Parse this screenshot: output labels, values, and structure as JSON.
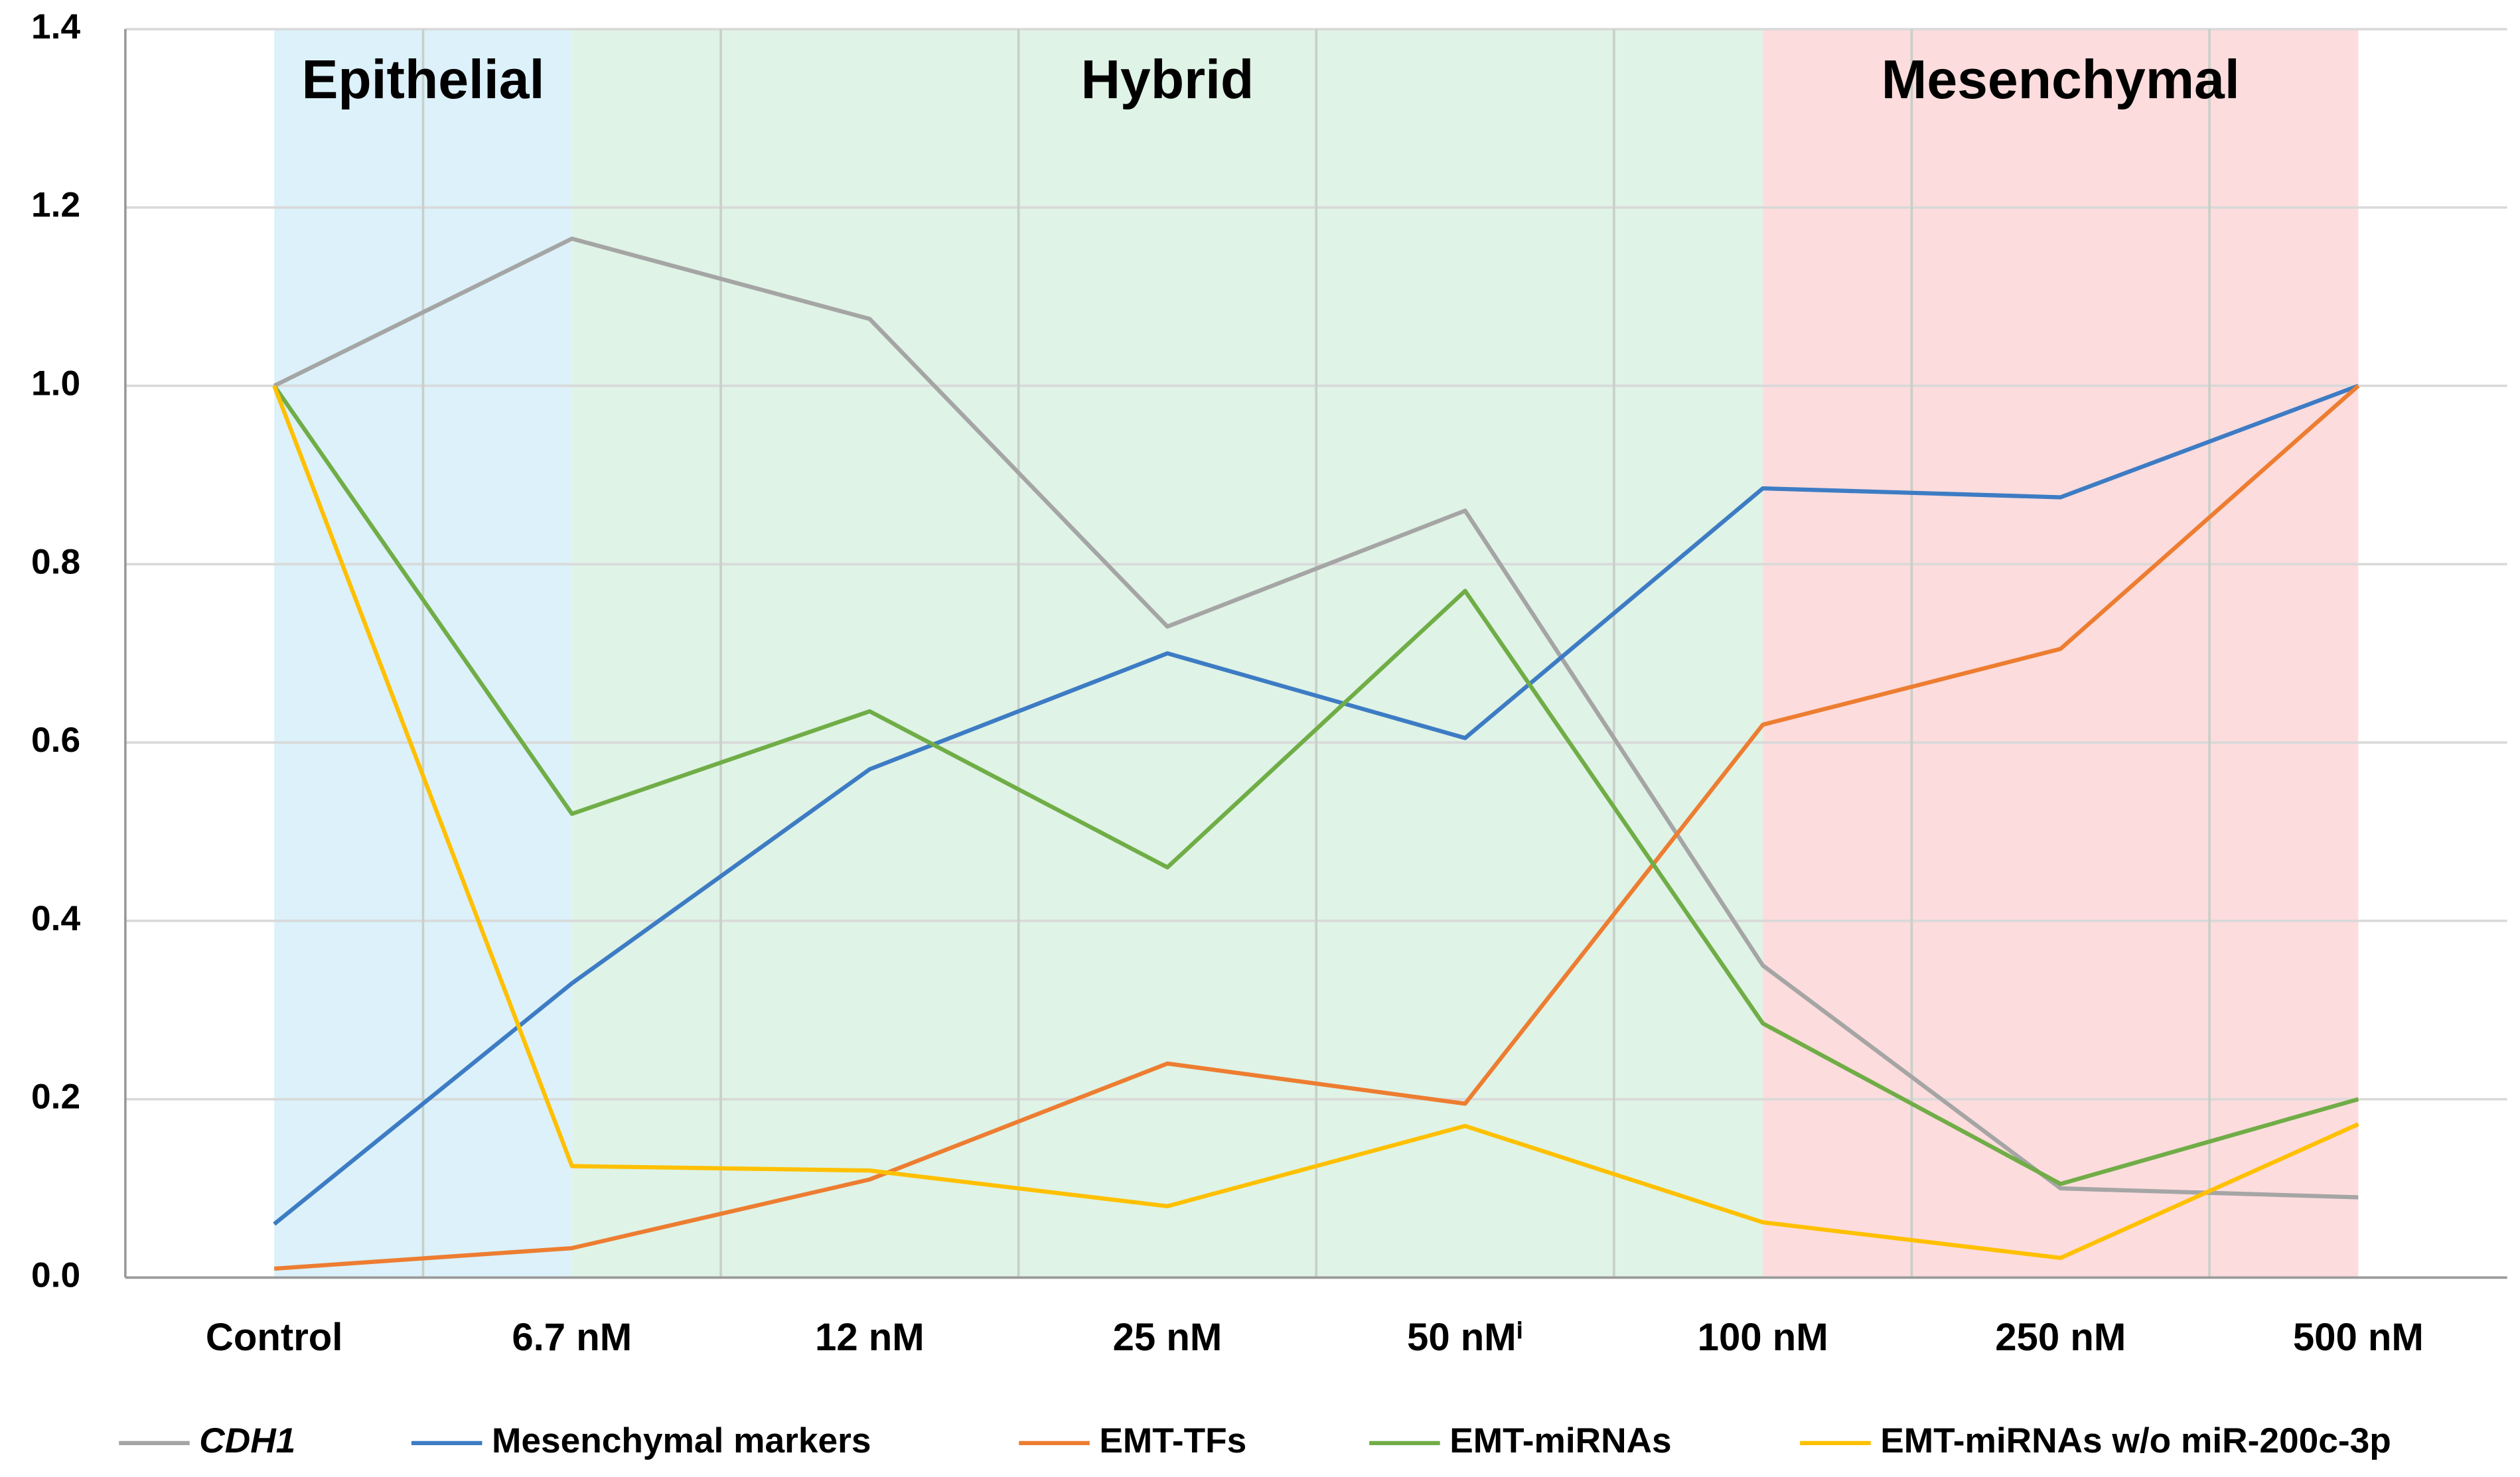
{
  "chart_data": {
    "type": "line",
    "categories": [
      "Control",
      "6.7 nM",
      "12 nM",
      "25 nM",
      "50 nMⁱ",
      "100 nM",
      "250 nM",
      "500 nM"
    ],
    "regions": [
      {
        "label": "Epithelial",
        "start": "Control",
        "end": "6.7 nM",
        "color": "#dcf1fa"
      },
      {
        "label": "Hybrid",
        "start": "6.7 nM",
        "end": "100 nM",
        "color": "#dff3e6"
      },
      {
        "label": "Mesenchymal",
        "start": "100 nM",
        "end": "500 nM",
        "color": "#fcdcdd"
      }
    ],
    "series": [
      {
        "name": "CDH1",
        "color": "#a5a5a5",
        "italic": true,
        "values": [
          1.0,
          1.165,
          1.075,
          0.73,
          0.86,
          0.35,
          0.1,
          0.09
        ]
      },
      {
        "name": "Mesenchymal markers",
        "color": "#3d7cc4",
        "values": [
          0.06,
          0.33,
          0.57,
          0.7,
          0.605,
          0.885,
          0.875,
          1.0
        ]
      },
      {
        "name": "EMT-TFs",
        "color": "#ed7d31",
        "values": [
          0.01,
          0.033,
          0.11,
          0.24,
          0.195,
          0.62,
          0.705,
          1.0
        ]
      },
      {
        "name": "EMT-miRNAs",
        "color": "#70ad47",
        "values": [
          1.0,
          0.52,
          0.635,
          0.46,
          0.77,
          0.285,
          0.105,
          0.2
        ]
      },
      {
        "name": "EMT-miRNAs w/o miR-200c-3p",
        "color": "#ffc000",
        "values": [
          1.0,
          0.125,
          0.12,
          0.08,
          0.17,
          0.062,
          0.022,
          0.172
        ]
      }
    ],
    "ylim": [
      0,
      1.4
    ],
    "yticks": [
      {
        "value": 0,
        "label": "0.0"
      },
      0.2,
      0.4,
      0.6,
      0.8,
      {
        "value": 1,
        "label": "1.0"
      },
      1.2,
      1.4
    ],
    "grid": true,
    "legend": "bottom"
  }
}
